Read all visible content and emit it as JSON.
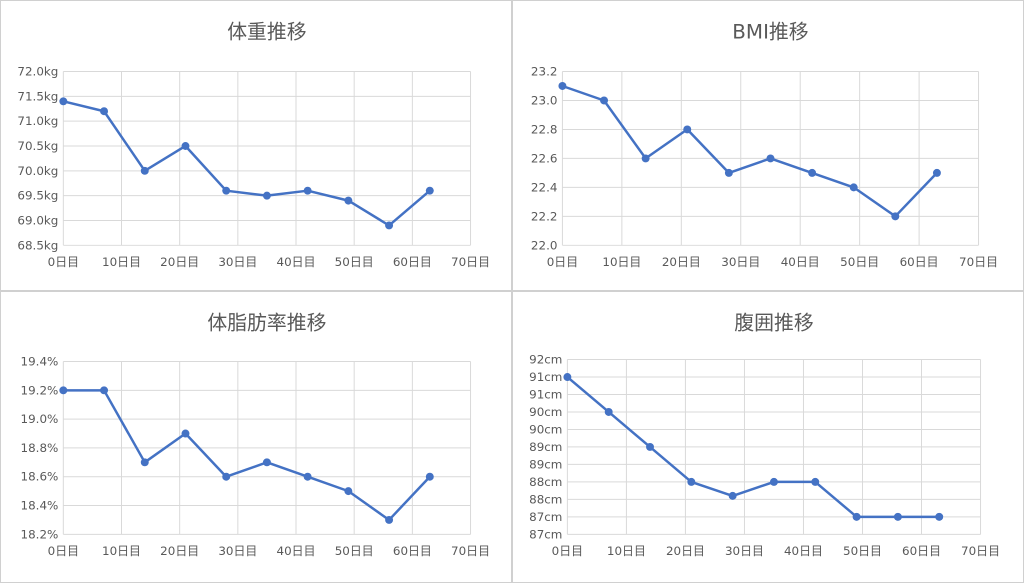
{
  "colors": {
    "series": "#4472c4",
    "grid": "#d9d9d9",
    "text": "#595959"
  },
  "chart_data": [
    {
      "type": "line",
      "title": "体重推移",
      "xlim": [
        0,
        70
      ],
      "x_ticks": [
        0,
        10,
        20,
        30,
        40,
        50,
        60,
        70
      ],
      "x_tick_labels": [
        "0日目",
        "10日目",
        "20日目",
        "30日目",
        "40日目",
        "50日目",
        "60日目",
        "70日目"
      ],
      "ylim": [
        68.5,
        72.0
      ],
      "y_ticks": [
        68.5,
        69.0,
        69.5,
        70.0,
        70.5,
        71.0,
        71.5,
        72.0
      ],
      "y_tick_labels": [
        "68.5kg",
        "69.0kg",
        "69.5kg",
        "70.0kg",
        "70.5kg",
        "71.0kg",
        "71.5kg",
        "72.0kg"
      ],
      "grid": true,
      "x": [
        0,
        7,
        14,
        21,
        28,
        35,
        42,
        49,
        56,
        63
      ],
      "values": [
        71.4,
        71.2,
        70.0,
        70.5,
        69.6,
        69.5,
        69.6,
        69.4,
        68.9,
        69.6
      ]
    },
    {
      "type": "line",
      "title": "BMI推移",
      "xlim": [
        0,
        70
      ],
      "x_ticks": [
        0,
        10,
        20,
        30,
        40,
        50,
        60,
        70
      ],
      "x_tick_labels": [
        "0日目",
        "10日目",
        "20日目",
        "30日目",
        "40日目",
        "50日目",
        "60日目",
        "70日目"
      ],
      "ylim": [
        22.0,
        23.2
      ],
      "y_ticks": [
        22.0,
        22.2,
        22.4,
        22.6,
        22.8,
        23.0,
        23.2
      ],
      "y_tick_labels": [
        "22.0",
        "22.2",
        "22.4",
        "22.6",
        "22.8",
        "23.0",
        "23.2"
      ],
      "grid": true,
      "x": [
        0,
        7,
        14,
        21,
        28,
        35,
        42,
        49,
        56,
        63
      ],
      "values": [
        23.1,
        23.0,
        22.6,
        22.8,
        22.5,
        22.6,
        22.5,
        22.4,
        22.2,
        22.5
      ]
    },
    {
      "type": "line",
      "title": "体脂肪率推移",
      "xlim": [
        0,
        70
      ],
      "x_ticks": [
        0,
        10,
        20,
        30,
        40,
        50,
        60,
        70
      ],
      "x_tick_labels": [
        "0日目",
        "10日目",
        "20日目",
        "30日目",
        "40日目",
        "50日目",
        "60日目",
        "70日目"
      ],
      "ylim": [
        18.2,
        19.4
      ],
      "y_ticks": [
        18.2,
        18.4,
        18.6,
        18.8,
        19.0,
        19.2,
        19.4
      ],
      "y_tick_labels": [
        "18.2%",
        "18.4%",
        "18.6%",
        "18.8%",
        "19.0%",
        "19.2%",
        "19.4%"
      ],
      "grid": true,
      "x": [
        0,
        7,
        14,
        21,
        28,
        35,
        42,
        49,
        56,
        63
      ],
      "values": [
        19.2,
        19.2,
        18.7,
        18.9,
        18.6,
        18.7,
        18.6,
        18.5,
        18.3,
        18.6
      ]
    },
    {
      "type": "line",
      "title": "腹囲推移",
      "xlim": [
        0,
        70
      ],
      "x_ticks": [
        0,
        10,
        20,
        30,
        40,
        50,
        60,
        70
      ],
      "x_tick_labels": [
        "0日目",
        "10日目",
        "20日目",
        "30日目",
        "40日目",
        "50日目",
        "60日目",
        "70日目"
      ],
      "ylim": [
        86.5,
        91.5
      ],
      "y_ticks": [
        86.5,
        87.0,
        87.5,
        88.0,
        88.5,
        89.0,
        89.5,
        90.0,
        90.5,
        91.0,
        91.5
      ],
      "y_tick_labels": [
        "87cm",
        "87cm",
        "88cm",
        "88cm",
        "89cm",
        "89cm",
        "90cm",
        "90cm",
        "91cm",
        "91cm",
        "92cm"
      ],
      "grid": true,
      "x": [
        0,
        7,
        14,
        21,
        28,
        35,
        42,
        49,
        56,
        63
      ],
      "values": [
        91.0,
        90.0,
        89.0,
        88.0,
        87.6,
        88.0,
        88.0,
        87.0,
        87.0,
        87.0
      ]
    }
  ]
}
